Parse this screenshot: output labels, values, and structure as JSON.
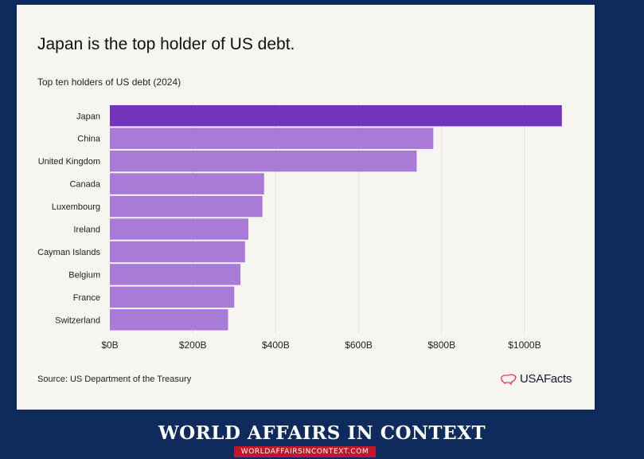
{
  "chart_data": {
    "type": "bar",
    "orientation": "horizontal",
    "title": "Japan is the top holder of US debt.",
    "subtitle": "Top ten holders of US debt (2024)",
    "categories": [
      "Japan",
      "China",
      "United Kingdom",
      "Canada",
      "Luxembourg",
      "Ireland",
      "Cayman Islands",
      "Belgium",
      "France",
      "Switzerland"
    ],
    "values": [
      1090,
      780,
      740,
      372,
      368,
      334,
      326,
      315,
      300,
      285
    ],
    "x_ticks": [
      "$0B",
      "$200B",
      "$400B",
      "$600B",
      "$800B",
      "$1000B"
    ],
    "x_tick_values": [
      0,
      200,
      400,
      600,
      800,
      1000
    ],
    "xlim": [
      0,
      1100
    ],
    "grid": true,
    "highlight_color": "#7433bb",
    "bar_color": "#a97ad6",
    "source": "Source: US Department of the Treasury"
  },
  "brand": {
    "name": "USAFacts",
    "icon": "us-map-icon",
    "icon_color": "#e23a5a"
  },
  "footer": {
    "title": "WORLD AFFAIRS IN CONTEXT",
    "url": "WORLDAFFAIRSINCONTEXT.COM"
  }
}
